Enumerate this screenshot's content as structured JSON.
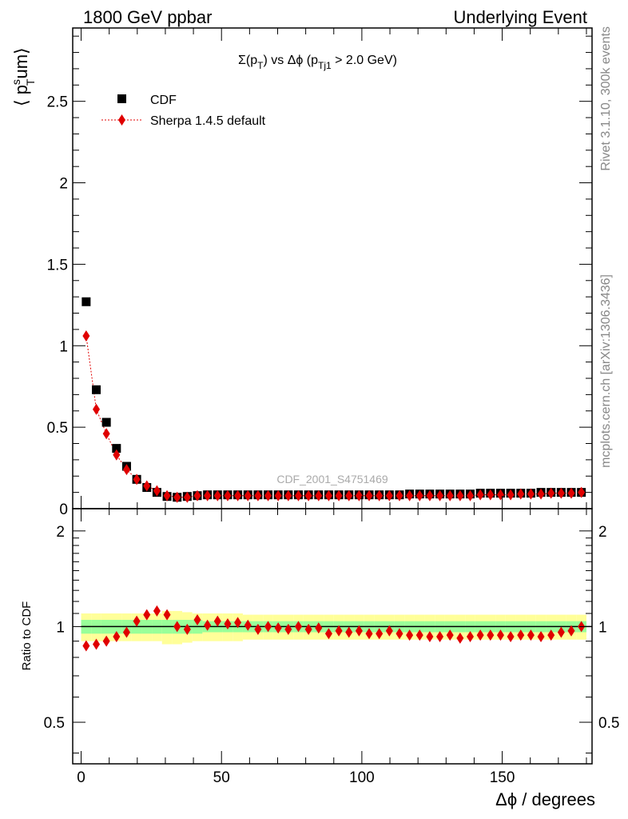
{
  "header": {
    "left": "1800 GeV ppbar",
    "right": "Underlying Event"
  },
  "side": {
    "rivet": "Rivet 3.1.10,  300k events",
    "mcplots": "mcplots.cern.ch [arXiv:1306.3436]"
  },
  "watermark": "CDF_2001_S4751469",
  "title_parts": {
    "sigma": "Σ(p",
    "sub_t": "T",
    "vs": ") vs Δϕ (p",
    "sub_tj1": "Tj1",
    "cut": " > 2.0 GeV)"
  },
  "ylabel_parts": {
    "open": "⟨ p",
    "sup": "s",
    "sub": "T",
    "rest": "um⟩"
  },
  "ratio_ylabel": "Ratio to CDF",
  "xlabel": "Δϕ / degrees",
  "legend": {
    "cdf": "CDF",
    "sherpa": "Sherpa 1.4.5 default"
  },
  "colors": {
    "data": "#000000",
    "mc": "#e00000",
    "band_inner": "#99ff99",
    "band_outer": "#ffff99"
  },
  "chart_data": {
    "type": "scatter",
    "xlabel": "Δϕ / degrees",
    "x": [
      1.8,
      5.4,
      9.0,
      12.6,
      16.2,
      19.8,
      23.4,
      27.0,
      30.6,
      34.2,
      37.8,
      41.4,
      45.0,
      48.6,
      52.2,
      55.8,
      59.4,
      63.0,
      66.6,
      70.2,
      73.8,
      77.4,
      81.0,
      84.6,
      88.2,
      91.8,
      95.4,
      99.0,
      102.6,
      106.2,
      109.8,
      113.4,
      117.0,
      120.6,
      124.2,
      127.8,
      131.4,
      135.0,
      138.6,
      142.2,
      145.8,
      149.4,
      153.0,
      156.6,
      160.2,
      163.8,
      167.4,
      171.0,
      174.6,
      178.2
    ],
    "main": {
      "xlim": [
        -3,
        182
      ],
      "ylim": [
        0,
        2.95
      ],
      "yticks": [
        0,
        0.5,
        1,
        1.5,
        2,
        2.5
      ],
      "ytick_labels": [
        "0",
        "0.5",
        "1",
        "1.5",
        "2",
        "2.5"
      ],
      "series": [
        {
          "name": "CDF",
          "values": [
            1.27,
            0.73,
            0.53,
            0.37,
            0.26,
            0.18,
            0.13,
            0.1,
            0.075,
            0.07,
            0.075,
            0.08,
            0.085,
            0.085,
            0.085,
            0.085,
            0.085,
            0.085,
            0.085,
            0.085,
            0.085,
            0.085,
            0.085,
            0.085,
            0.085,
            0.085,
            0.085,
            0.085,
            0.085,
            0.085,
            0.085,
            0.085,
            0.09,
            0.09,
            0.09,
            0.09,
            0.09,
            0.09,
            0.09,
            0.095,
            0.095,
            0.095,
            0.095,
            0.095,
            0.095,
            0.1,
            0.1,
            0.1,
            0.1,
            0.1
          ]
        },
        {
          "name": "Sherpa 1.4.5 default",
          "values": [
            1.06,
            0.61,
            0.46,
            0.33,
            0.24,
            0.18,
            0.14,
            0.11,
            0.08,
            0.07,
            0.07,
            0.08,
            0.08,
            0.08,
            0.08,
            0.08,
            0.08,
            0.08,
            0.08,
            0.08,
            0.08,
            0.08,
            0.08,
            0.08,
            0.08,
            0.08,
            0.08,
            0.08,
            0.08,
            0.08,
            0.08,
            0.08,
            0.08,
            0.08,
            0.08,
            0.08,
            0.08,
            0.08,
            0.08,
            0.085,
            0.085,
            0.085,
            0.085,
            0.09,
            0.09,
            0.09,
            0.095,
            0.095,
            0.095,
            0.1
          ]
        }
      ]
    },
    "ratio": {
      "ylabel": "Ratio to CDF",
      "ylim": [
        0.37,
        2.35
      ],
      "log_y": true,
      "yticks": [
        0.5,
        1,
        2
      ],
      "ytick_labels": [
        "0.5",
        "1",
        "2"
      ],
      "xticks": [
        0,
        50,
        100,
        150
      ],
      "xtick_labels": [
        "0",
        "50",
        "100",
        "150"
      ],
      "values": [
        0.87,
        0.88,
        0.9,
        0.93,
        0.96,
        1.04,
        1.09,
        1.12,
        1.09,
        1.0,
        0.98,
        1.05,
        1.01,
        1.04,
        1.02,
        1.03,
        1.01,
        0.98,
        1.0,
        0.99,
        0.98,
        1.0,
        0.98,
        0.99,
        0.95,
        0.97,
        0.96,
        0.97,
        0.95,
        0.95,
        0.97,
        0.95,
        0.94,
        0.94,
        0.93,
        0.93,
        0.94,
        0.92,
        0.93,
        0.94,
        0.94,
        0.94,
        0.93,
        0.94,
        0.94,
        0.93,
        0.94,
        0.96,
        0.97,
        1.0
      ],
      "band_inner": [
        0.05,
        0.05,
        0.05,
        0.05,
        0.05,
        0.05,
        0.05,
        0.05,
        0.05,
        0.05,
        0.05,
        0.05,
        0.04,
        0.04,
        0.04,
        0.04,
        0.04,
        0.04,
        0.04,
        0.04,
        0.04,
        0.04,
        0.04,
        0.04,
        0.04,
        0.04,
        0.04,
        0.04,
        0.04,
        0.04,
        0.04,
        0.04,
        0.04,
        0.04,
        0.04,
        0.04,
        0.04,
        0.04,
        0.04,
        0.04,
        0.04,
        0.04,
        0.04,
        0.04,
        0.04,
        0.04,
        0.04,
        0.04,
        0.04,
        0.04
      ],
      "band_outer": [
        0.1,
        0.1,
        0.1,
        0.1,
        0.1,
        0.1,
        0.1,
        0.1,
        0.12,
        0.12,
        0.11,
        0.1,
        0.1,
        0.1,
        0.1,
        0.1,
        0.09,
        0.09,
        0.09,
        0.09,
        0.09,
        0.09,
        0.09,
        0.09,
        0.09,
        0.09,
        0.09,
        0.09,
        0.09,
        0.09,
        0.09,
        0.09,
        0.09,
        0.09,
        0.09,
        0.09,
        0.09,
        0.09,
        0.09,
        0.09,
        0.09,
        0.09,
        0.09,
        0.09,
        0.09,
        0.09,
        0.09,
        0.09,
        0.09,
        0.09
      ]
    }
  }
}
